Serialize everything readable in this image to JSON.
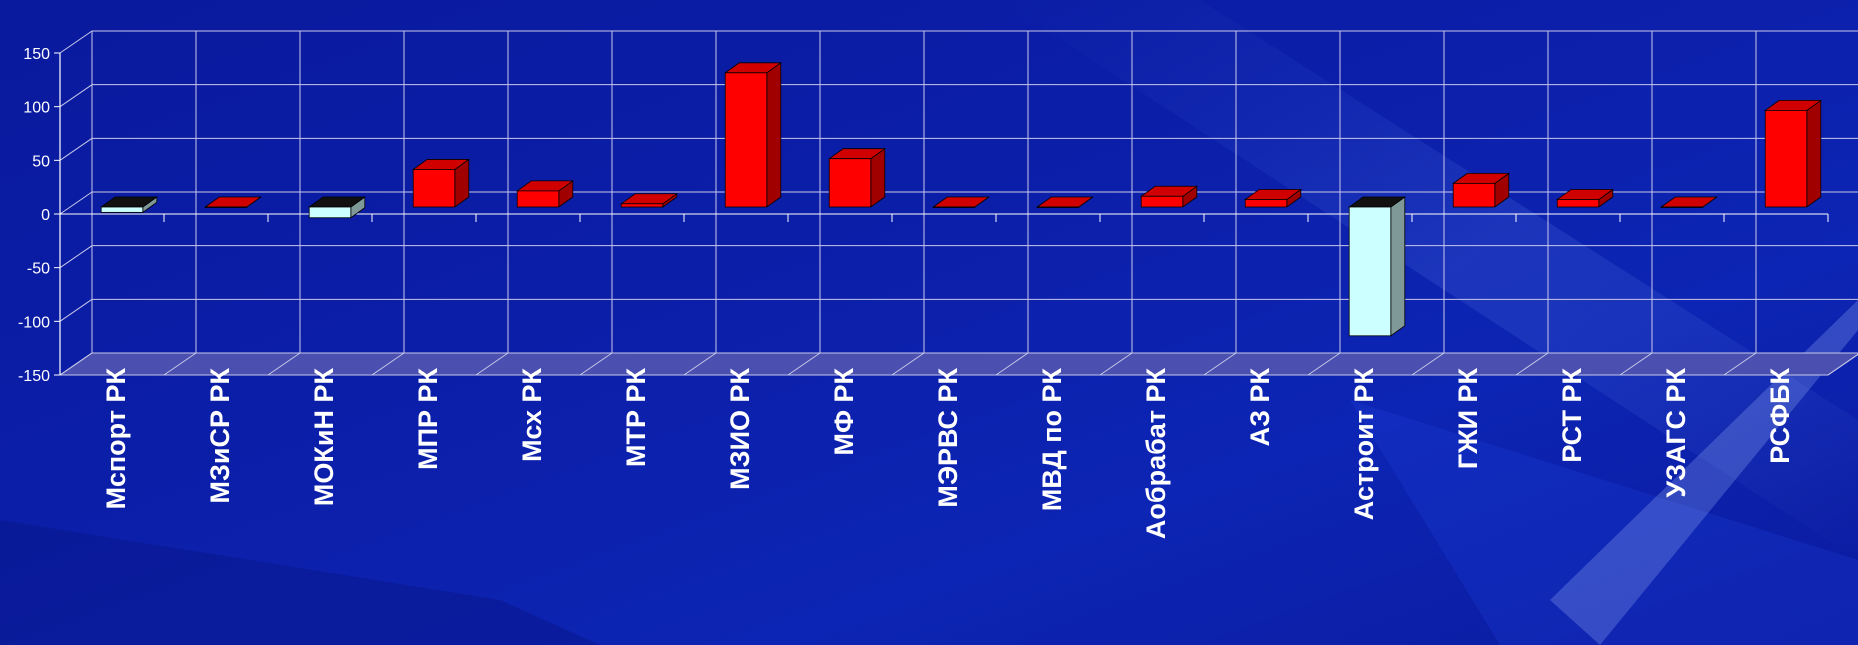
{
  "chart_data": {
    "type": "bar",
    "title": "",
    "xlabel": "",
    "ylabel": "",
    "ylim": [
      -150,
      150
    ],
    "yticks": [
      -150,
      -100,
      -50,
      0,
      50,
      100,
      150
    ],
    "grid": true,
    "categories": [
      "Мспорт РК",
      "МЗиСР РК",
      "МОКиН РК",
      "МПР РК",
      "Мсх РК",
      "МТР РК",
      "МЗИО РК",
      "МФ РК",
      "МЭРВС РК",
      "МВД по РК",
      "Аобрабат РК",
      "АЗ РК",
      "Астроит РК",
      "ГЖИ РК",
      "РСТ РК",
      "УЗАГС РК",
      "РСФБК"
    ],
    "series": [
      {
        "values": [
          -5,
          0,
          -10,
          35,
          15,
          3,
          125,
          45,
          0,
          0,
          10,
          7,
          -120,
          22,
          7,
          0,
          90
        ]
      }
    ],
    "colors": {
      "positive": "#ff0000",
      "positive_side": "#a00000",
      "positive_top": "#d00000",
      "negative": "#ccffff",
      "negative_side": "#7f9999",
      "negative_top": "#111111",
      "grid": "#c8c8e8",
      "floor": "#4a4fb0"
    }
  }
}
